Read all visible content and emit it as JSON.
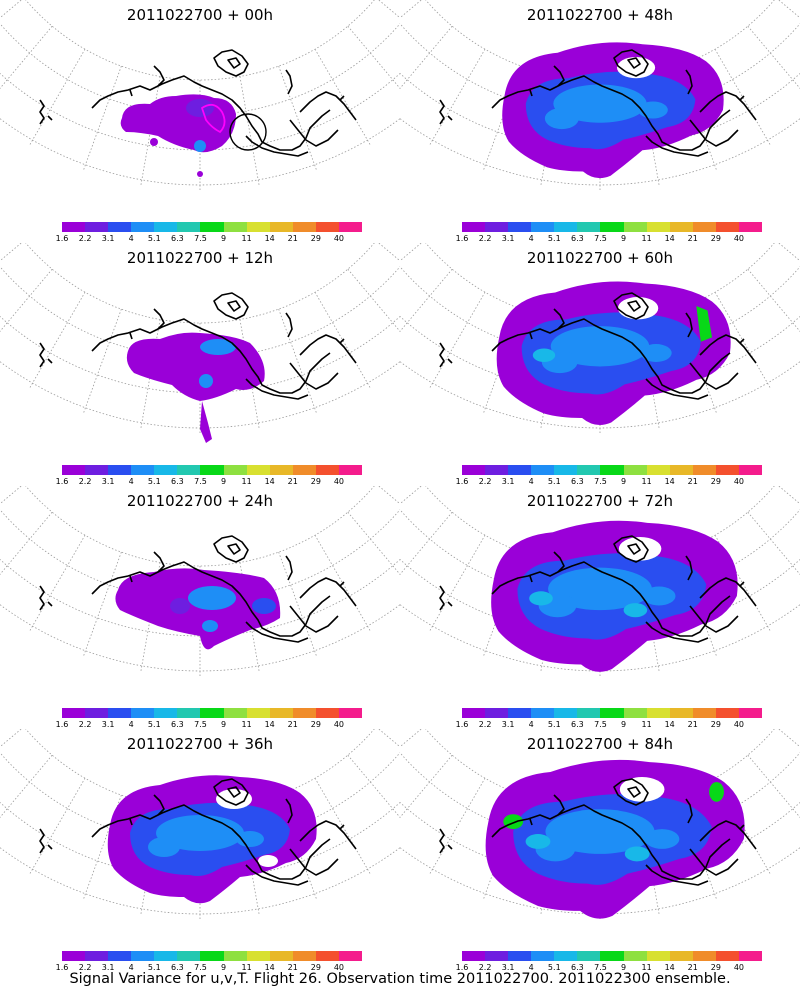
{
  "panels": [
    {
      "title": "2011022700 + 00h",
      "stage": 0
    },
    {
      "title": "2011022700 + 48h",
      "stage": 4
    },
    {
      "title": "2011022700 + 12h",
      "stage": 1
    },
    {
      "title": "2011022700 + 60h",
      "stage": 5
    },
    {
      "title": "2011022700 + 24h",
      "stage": 2
    },
    {
      "title": "2011022700 + 72h",
      "stage": 6
    },
    {
      "title": "2011022700 + 36h",
      "stage": 3
    },
    {
      "title": "2011022700 + 84h",
      "stage": 7
    }
  ],
  "colorbar": {
    "colors": [
      "#9a00d8",
      "#6e1ee0",
      "#2a4ef0",
      "#1e8ef6",
      "#18b8e8",
      "#22c8b0",
      "#08d818",
      "#8ee040",
      "#d8e030",
      "#e8b828",
      "#f08c2a",
      "#f4502e",
      "#f41c8c"
    ],
    "ticks": [
      "1.6",
      "2.2",
      "3.1",
      "4",
      "5.1",
      "6.3",
      "7.5",
      "9",
      "11",
      "14",
      "21",
      "29",
      "40"
    ]
  },
  "colors": {
    "coast": "#000000",
    "grid": "#9a9a9a",
    "track": "#ff00ff"
  },
  "caption": "Signal Variance for u,v,T. Flight 26. Observation time 2011022700. 2011022300 ensemble."
}
